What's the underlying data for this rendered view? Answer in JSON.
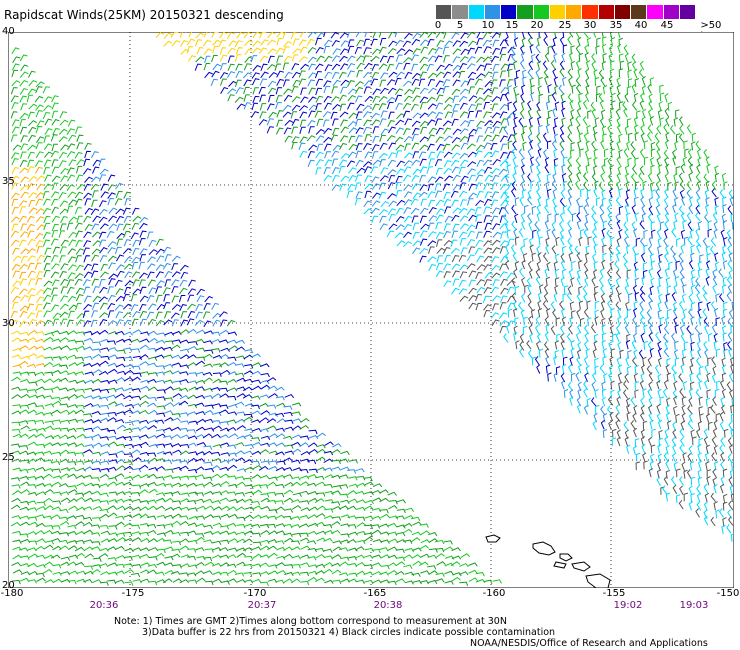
{
  "title": "Rapidscat Winds(25KM) 20150321 descending",
  "legend": {
    "labels": [
      "0",
      "5",
      "10",
      "15",
      "20",
      "25",
      "30",
      "35",
      "40",
      "45",
      ">50 knots"
    ],
    "colors": [
      "#555555",
      "#8c8c8c",
      "#00d8ff",
      "#2e92e6",
      "#0000c8",
      "#14a01e",
      "#18c822",
      "#ffd000",
      "#ffa800",
      "#ff3000",
      "#b40000",
      "#800000",
      "#5a3a1a",
      "#ff00ff",
      "#a000c8",
      "#6400a0"
    ]
  },
  "map": {
    "lat_labels": [
      "40",
      "35",
      "30",
      "25",
      "20"
    ],
    "lon_labels": [
      "-180",
      "-175",
      "-170",
      "-165",
      "-160",
      "-155",
      "-150"
    ],
    "time_labels": [
      "20:36",
      "20:37",
      "20:38",
      "19:02",
      "19:03"
    ]
  },
  "notes": {
    "line1": "Note: 1) Times are GMT 2)Times along bottom correspond to measurement at 30N",
    "line2": "3)Data buffer is 22 hrs from 20150321 4) Black circles indicate possible contamination",
    "line3": "NOAA/NESDIS/Office of Research and Applications"
  }
}
